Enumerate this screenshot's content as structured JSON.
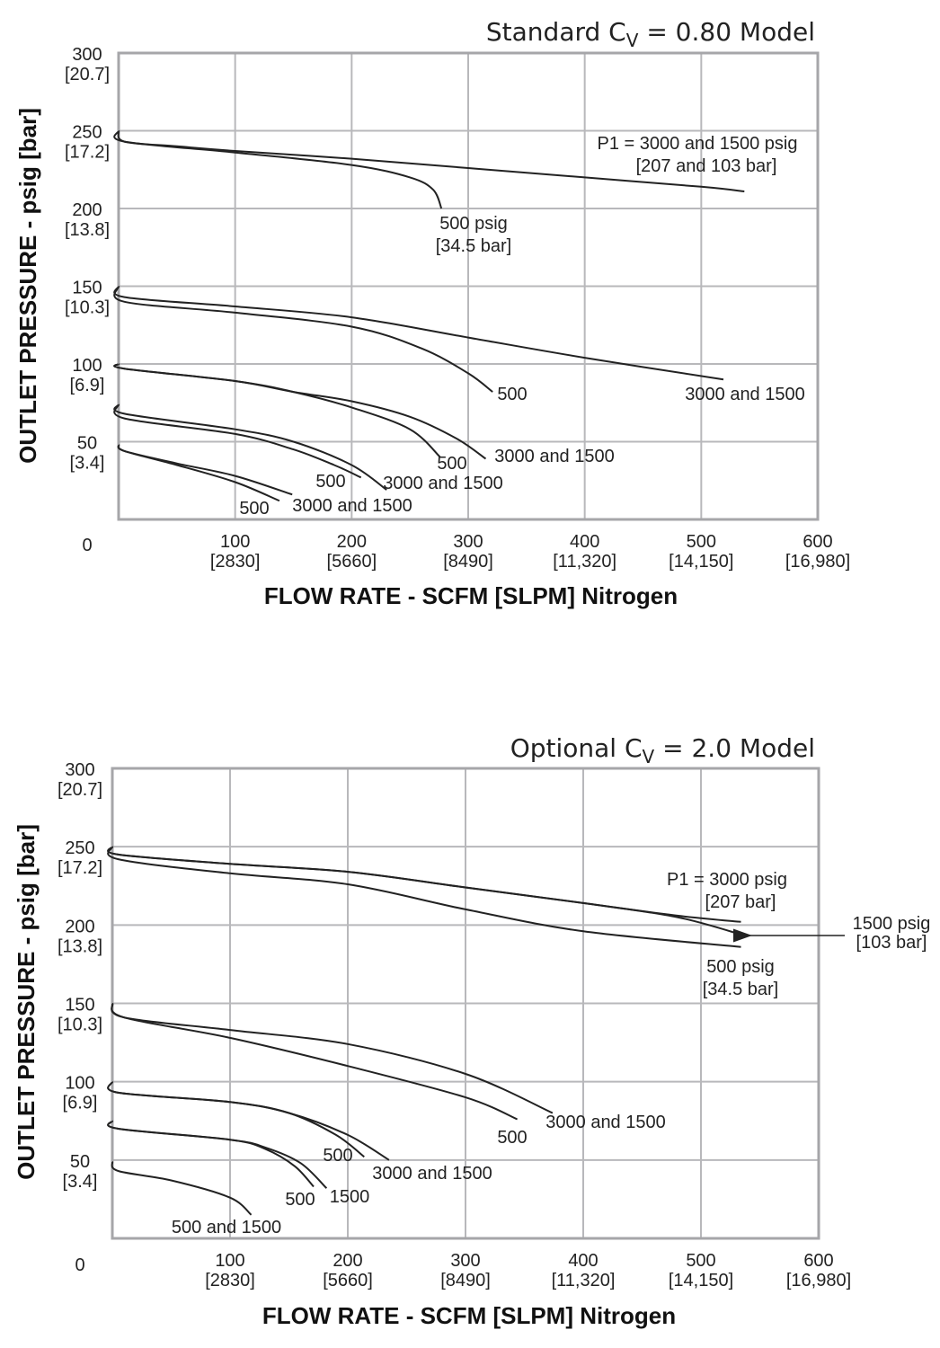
{
  "chart_data": [
    {
      "type": "line",
      "title": {
        "main": "Standard C",
        "sub": "V",
        "rest": " = 0.80 Model"
      },
      "xlabel": "FLOW RATE - SCFM [SLPM] Nitrogen",
      "ylabel": "OUTLET PRESSURE - psig [bar]",
      "xlim": [
        0,
        600
      ],
      "ylim": [
        0,
        300
      ],
      "grid": true,
      "origin_label": "0",
      "xticks": [
        {
          "value": 100,
          "label": "100",
          "sub": "[2830]"
        },
        {
          "value": 200,
          "label": "200",
          "sub": "[5660]"
        },
        {
          "value": 300,
          "label": "300",
          "sub": "[8490]"
        },
        {
          "value": 400,
          "label": "400",
          "sub": "[11,320]"
        },
        {
          "value": 500,
          "label": "500",
          "sub": "[14,150]"
        },
        {
          "value": 600,
          "label": "600",
          "sub": "[16,980]"
        }
      ],
      "yticks": [
        {
          "value": 50,
          "label": "50",
          "sub": "[3.4]"
        },
        {
          "value": 100,
          "label": "100",
          "sub": "[6.9]"
        },
        {
          "value": 150,
          "label": "150",
          "sub": "[10.3]"
        },
        {
          "value": 200,
          "label": "200",
          "sub": "[13.8]"
        },
        {
          "value": 250,
          "label": "250",
          "sub": "[17.2]"
        },
        {
          "value": 300,
          "label": "300",
          "sub": "[20.7]"
        }
      ],
      "series": [
        {
          "name": "250 psig set, P1 3000 and 1500",
          "x": [
            0,
            5,
            50,
            100,
            200,
            300,
            400,
            500,
            537
          ],
          "y": [
            250,
            243,
            240,
            237,
            232,
            226,
            220,
            214,
            211
          ]
        },
        {
          "name": "250 psig set, P1 500",
          "x": [
            0,
            5,
            100,
            200,
            250,
            270,
            277
          ],
          "y": [
            250,
            243,
            236,
            228,
            220,
            212,
            200
          ]
        },
        {
          "name": "150 psig set, P1 3000 and 1500",
          "x": [
            0,
            5,
            100,
            200,
            300,
            400,
            519
          ],
          "y": [
            150,
            143,
            137,
            130,
            117,
            104,
            90
          ]
        },
        {
          "name": "150 psig set, P1 500",
          "x": [
            0,
            5,
            100,
            200,
            260,
            300,
            321
          ],
          "y": [
            150,
            140,
            133,
            124,
            110,
            94,
            82
          ]
        },
        {
          "name": "100 psig set, P1 3000 and 1500",
          "x": [
            0,
            5,
            100,
            150,
            200,
            250,
            290,
            315
          ],
          "y": [
            100,
            97,
            89,
            82,
            76,
            66,
            52,
            39
          ]
        },
        {
          "name": "100 psig set, P1 500",
          "x": [
            0,
            5,
            100,
            150,
            200,
            250,
            276
          ],
          "y": [
            100,
            97,
            89,
            82,
            72,
            58,
            40
          ]
        },
        {
          "name": "75 psig set, P1 3000 and 1500",
          "x": [
            0,
            5,
            100,
            150,
            200,
            230
          ],
          "y": [
            74,
            68,
            58,
            50,
            35,
            19
          ]
        },
        {
          "name": "75 psig set, P1 500",
          "x": [
            0,
            5,
            100,
            150,
            185,
            208
          ],
          "y": [
            74,
            65,
            55,
            45,
            35,
            27
          ]
        },
        {
          "name": "50 psig set, P1 3000 and 1500",
          "x": [
            0,
            5,
            50,
            100,
            149
          ],
          "y": [
            48,
            44,
            36,
            28,
            16
          ]
        },
        {
          "name": "50 psig set, P1 500",
          "x": [
            0,
            5,
            50,
            100,
            138
          ],
          "y": [
            48,
            44,
            35,
            24,
            12
          ]
        }
      ],
      "annotations": [
        "P1 = 3000 and 1500 psig",
        "[207 and 103 bar]",
        "500 psig",
        "[34.5 bar]",
        "500",
        "3000 and 1500",
        "500",
        "3000 and 1500",
        "500",
        "3000 and 1500",
        "500",
        "3000 and 1500"
      ]
    },
    {
      "type": "line",
      "title": {
        "main": "Optional C",
        "sub": "V",
        "rest": " = 2.0 Model"
      },
      "xlabel": "FLOW RATE - SCFM [SLPM] Nitrogen",
      "ylabel": "OUTLET PRESSURE - psig [bar]",
      "xlim": [
        0,
        600
      ],
      "ylim": [
        0,
        300
      ],
      "grid": true,
      "origin_label": "0",
      "xticks": [
        {
          "value": 100,
          "label": "100",
          "sub": "[2830]"
        },
        {
          "value": 200,
          "label": "200",
          "sub": "[5660]"
        },
        {
          "value": 300,
          "label": "300",
          "sub": "[8490]"
        },
        {
          "value": 400,
          "label": "400",
          "sub": "[11,320]"
        },
        {
          "value": 500,
          "label": "500",
          "sub": "[14,150]"
        },
        {
          "value": 600,
          "label": "600",
          "sub": "[16,980]"
        }
      ],
      "yticks": [
        {
          "value": 50,
          "label": "50",
          "sub": "[3.4]"
        },
        {
          "value": 100,
          "label": "100",
          "sub": "[6.9]"
        },
        {
          "value": 150,
          "label": "150",
          "sub": "[10.3]"
        },
        {
          "value": 200,
          "label": "200",
          "sub": "[13.8]"
        },
        {
          "value": 250,
          "label": "250",
          "sub": "[17.2]"
        },
        {
          "value": 300,
          "label": "300",
          "sub": "[20.7]"
        }
      ],
      "series": [
        {
          "name": "250 psig set, P1 3000",
          "x": [
            0,
            5,
            100,
            200,
            300,
            400,
            480,
            534
          ],
          "y": [
            250,
            245,
            239,
            234,
            224,
            214,
            206,
            202
          ]
        },
        {
          "name": "250 psig set, P1 1500",
          "x": [
            0,
            5,
            100,
            200,
            300,
            400,
            480,
            538
          ],
          "y": [
            250,
            245,
            239,
            234,
            224,
            214,
            205,
            193
          ]
        },
        {
          "name": "250 psig set, P1 500",
          "x": [
            0,
            5,
            100,
            200,
            300,
            400,
            534
          ],
          "y": [
            250,
            242,
            233,
            226,
            210,
            196,
            186
          ]
        },
        {
          "name": "150 psig set, P1 3000 and 1500",
          "x": [
            0,
            10,
            100,
            200,
            300,
            374
          ],
          "y": [
            150,
            141,
            133,
            124,
            105,
            80
          ]
        },
        {
          "name": "150 psig set, P1 500",
          "x": [
            0,
            10,
            100,
            200,
            300,
            344
          ],
          "y": [
            150,
            141,
            128,
            110,
            90,
            76
          ]
        },
        {
          "name": "100 psig set, P1 3000 and 1500",
          "x": [
            0,
            5,
            100,
            150,
            200,
            235
          ],
          "y": [
            100,
            93,
            87,
            80,
            66,
            50
          ]
        },
        {
          "name": "100 psig set, P1 500",
          "x": [
            0,
            5,
            100,
            150,
            190,
            214
          ],
          "y": [
            100,
            93,
            87,
            80,
            66,
            52
          ]
        },
        {
          "name": "75 psig set, P1 1500",
          "x": [
            0,
            5,
            100,
            130,
            160,
            182
          ],
          "y": [
            75,
            70,
            63,
            58,
            48,
            32
          ]
        },
        {
          "name": "75 psig set, P1 500",
          "x": [
            0,
            5,
            100,
            130,
            155,
            171
          ],
          "y": [
            75,
            70,
            63,
            57,
            46,
            33
          ]
        },
        {
          "name": "50 psig set, P1 500 and 1500",
          "x": [
            0,
            5,
            50,
            100,
            118
          ],
          "y": [
            49,
            43,
            37,
            26,
            15
          ]
        }
      ],
      "annotations": [
        "P1 = 3000 psig",
        "[207 bar]",
        "500 psig",
        "[34.5 bar]",
        "3000 and 1500",
        "500",
        "500",
        "3000 and 1500",
        "500",
        "1500",
        "500 and 1500",
        "1500 psig",
        "[103 bar]"
      ]
    }
  ]
}
